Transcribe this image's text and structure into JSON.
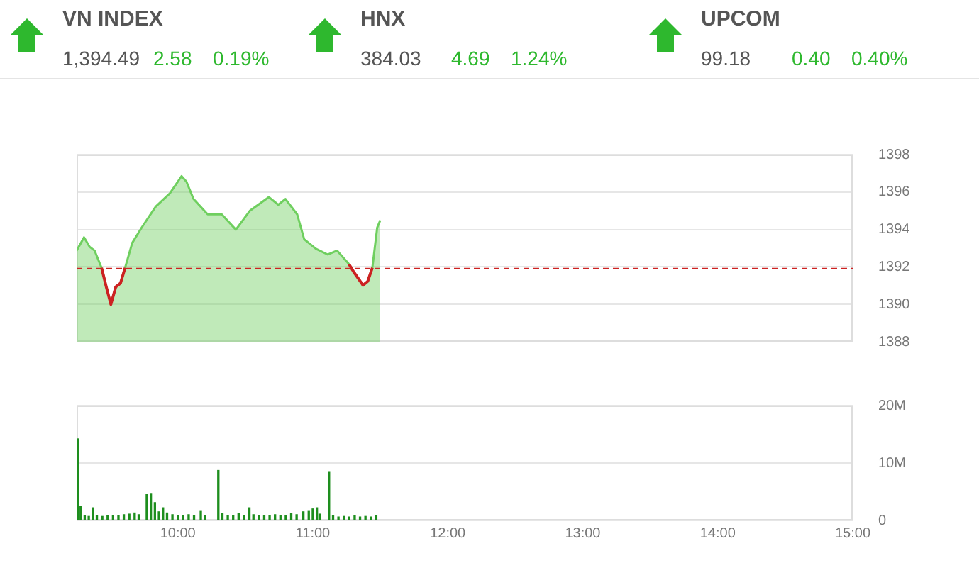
{
  "chart_data": [
    {
      "type": "other",
      "categories": [
        "VN INDEX",
        "HNX",
        "UPCOM"
      ],
      "series": [
        {
          "color": "#555555",
          "values": [
            1394.49,
            384.03,
            99.18
          ],
          "value_labels": [
            "1,394.49",
            "384.03",
            "99.18"
          ]
        },
        {
          "color": "#2eb82e",
          "values": [
            2.58,
            4.69,
            0.4
          ],
          "value_labels": [
            "2.58",
            "4.69",
            "0.40"
          ]
        },
        {
          "color": "#2eb82e",
          "values": [
            0.19,
            1.24,
            0.4
          ],
          "value_labels": [
            "0.19%",
            "1.24%",
            "0.40%"
          ]
        }
      ]
    },
    {
      "type": "area",
      "x": [
        9.25,
        9.305,
        9.347,
        9.383,
        9.435,
        9.47,
        9.504,
        9.54,
        9.575,
        9.609,
        9.662,
        9.732,
        9.836,
        9.941,
        10.028,
        10.064,
        10.116,
        10.221,
        10.325,
        10.43,
        10.535,
        10.674,
        10.744,
        10.797,
        10.884,
        10.936,
        11.023,
        11.111,
        11.18,
        11.268,
        11.302,
        11.372,
        11.407,
        11.441,
        11.477,
        11.5
      ],
      "series": [
        {
          "color": "#6fcf5f",
          "values": [
            1392.87,
            1393.58,
            1393.07,
            1392.87,
            1391.95,
            1390.93,
            1390.0,
            1390.93,
            1391.13,
            1391.95,
            1393.28,
            1394.1,
            1395.22,
            1395.93,
            1396.85,
            1396.55,
            1395.63,
            1394.81,
            1394.81,
            1393.99,
            1395.01,
            1395.73,
            1395.32,
            1395.63,
            1394.81,
            1393.48,
            1392.97,
            1392.66,
            1392.87,
            1392.15,
            1391.74,
            1391.02,
            1391.23,
            1391.95,
            1394.1,
            1394.49
          ]
        },
        {
          "type": "line",
          "color": "#cc2222",
          "values": [
            null,
            null,
            null,
            null,
            1391.95,
            1390.93,
            1390.0,
            1390.93,
            1391.13,
            1391.95,
            null,
            null,
            null,
            null,
            null,
            null,
            null,
            null,
            null,
            null,
            null,
            null,
            null,
            null,
            null,
            null,
            null,
            null,
            null,
            1392.15,
            1391.74,
            1391.02,
            1391.23,
            1391.95,
            null,
            null
          ]
        }
      ],
      "xlim": [
        9.25,
        15
      ],
      "ylim": [
        1388,
        1398
      ],
      "yticks": [
        1388,
        1390,
        1392,
        1394,
        1396,
        1398
      ],
      "ref_lines": [
        {
          "axis": "y",
          "value": 1391.91,
          "color": "#cc2222",
          "line_style": "dashed"
        }
      ],
      "grid": "y",
      "legend": false,
      "tick_labels": "y"
    },
    {
      "type": "bar",
      "x": [
        9.26,
        9.28,
        9.31,
        9.34,
        9.37,
        9.4,
        9.44,
        9.48,
        9.52,
        9.56,
        9.6,
        9.64,
        9.68,
        9.71,
        9.77,
        9.8,
        9.83,
        9.86,
        9.89,
        9.92,
        9.96,
        10.0,
        10.04,
        10.08,
        10.12,
        10.17,
        10.2,
        10.3,
        10.33,
        10.37,
        10.41,
        10.45,
        10.49,
        10.53,
        10.56,
        10.6,
        10.64,
        10.68,
        10.72,
        10.76,
        10.8,
        10.84,
        10.88,
        10.93,
        10.97,
        11.0,
        11.03,
        11.05,
        11.12,
        11.15,
        11.19,
        11.23,
        11.27,
        11.31,
        11.35,
        11.39,
        11.43,
        11.47
      ],
      "values": [
        14.2,
        2.5,
        0.8,
        0.7,
        2.2,
        0.8,
        0.7,
        0.9,
        0.8,
        0.9,
        1.0,
        1.1,
        1.3,
        1.0,
        4.5,
        4.7,
        3.1,
        1.5,
        2.2,
        1.3,
        1.0,
        0.9,
        0.8,
        1.0,
        0.9,
        1.7,
        0.8,
        8.7,
        1.2,
        0.9,
        0.8,
        1.2,
        0.8,
        2.2,
        1.0,
        0.9,
        0.8,
        0.9,
        1.0,
        0.9,
        0.8,
        1.2,
        1.0,
        1.5,
        1.7,
        2.0,
        2.2,
        1.1,
        8.5,
        0.8,
        0.6,
        0.7,
        0.6,
        0.8,
        0.6,
        0.7,
        0.6,
        0.8
      ],
      "color": "#1e8e1e",
      "xlim": [
        9.25,
        15
      ],
      "xticks": [
        {
          "value": 10,
          "label": "10:00"
        },
        {
          "value": 11,
          "label": "11:00"
        },
        {
          "value": 12,
          "label": "12:00"
        },
        {
          "value": 13,
          "label": "13:00"
        },
        {
          "value": 14,
          "label": "14:00"
        },
        {
          "value": 15,
          "label": "15:00"
        }
      ],
      "ylim": [
        0,
        20
      ],
      "yticks": [
        {
          "value": 0,
          "label": "0"
        },
        {
          "value": 10,
          "label": "10M"
        },
        {
          "value": 20,
          "label": "20M"
        }
      ],
      "grid": "y",
      "legend": false
    }
  ]
}
